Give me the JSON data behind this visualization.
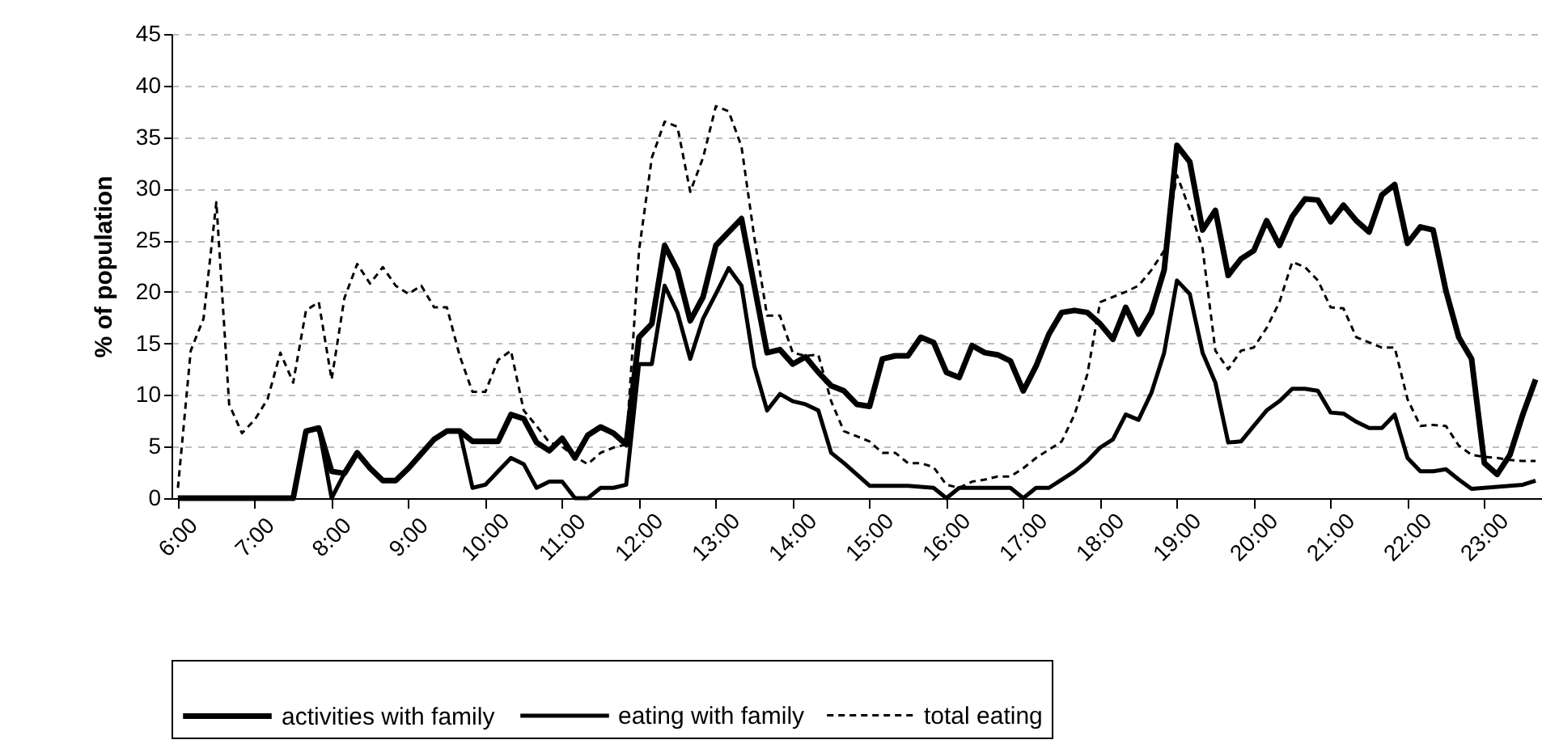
{
  "chart_data": {
    "type": "line",
    "ylabel": "% of population",
    "categories": [
      "6:00",
      null,
      null,
      null,
      null,
      null,
      "7:00",
      null,
      null,
      null,
      null,
      null,
      "8:00",
      null,
      null,
      null,
      null,
      null,
      "9:00",
      null,
      null,
      null,
      null,
      null,
      "10:00",
      null,
      null,
      null,
      null,
      null,
      "11:00",
      null,
      null,
      null,
      null,
      null,
      "12:00",
      null,
      null,
      null,
      null,
      null,
      "13:00",
      null,
      null,
      null,
      null,
      null,
      "14:00",
      null,
      null,
      null,
      null,
      null,
      "15:00",
      null,
      null,
      null,
      null,
      null,
      "16:00",
      null,
      null,
      null,
      null,
      null,
      "17:00",
      null,
      null,
      null,
      null,
      null,
      "18:00",
      null,
      null,
      null,
      null,
      null,
      "19:00",
      null,
      null,
      null,
      null,
      null,
      "20:00",
      null,
      null,
      null,
      null,
      null,
      "21:00",
      null,
      null,
      null,
      null,
      null,
      "22:00",
      null,
      null,
      null,
      null,
      null,
      "23:00",
      null,
      null,
      null,
      null
    ],
    "series": [
      {
        "name": "activities with family",
        "color": "#000000",
        "line_style": "solid",
        "values": [
          0,
          0,
          0,
          0,
          0,
          0,
          0,
          0,
          0,
          0,
          6.5,
          6.8,
          2.6,
          2.4,
          4.4,
          2.9,
          1.7,
          1.7,
          2.9,
          4.3,
          5.7,
          6.5,
          6.5,
          5.5,
          5.5,
          5.5,
          8.1,
          7.7,
          5.4,
          4.6,
          5.8,
          3.9,
          6.1,
          6.9,
          6.3,
          5.2,
          15.6,
          16.9,
          24.5,
          22.1,
          17.2,
          19.5,
          24.5,
          25.8,
          27.1,
          20.6,
          14.1,
          14.4,
          13.0,
          13.7,
          12.2,
          10.9,
          10.4,
          9.1,
          8.9,
          13.5,
          13.8,
          13.8,
          15.6,
          15.1,
          12.2,
          11.7,
          14.8,
          14.1,
          13.9,
          13.3,
          10.4,
          12.8,
          15.9,
          18.0,
          18.2,
          18.0,
          16.9,
          15.4,
          18.5,
          15.9,
          18.0,
          22.1,
          34.2,
          32.6,
          26.0,
          27.9,
          21.6,
          23.2,
          24.0,
          26.9,
          24.5,
          27.3,
          29.0,
          28.9,
          26.8,
          28.4,
          26.9,
          25.8,
          29.4,
          30.4,
          24.7,
          26.3,
          26.0,
          20.1,
          15.6,
          13.5,
          3.4,
          2.3,
          4.2,
          8.1,
          11.5
        ]
      },
      {
        "name": "eating with family",
        "color": "#000000",
        "line_style": "solid",
        "values": [
          0,
          0,
          0,
          0,
          0,
          0,
          0,
          0,
          0,
          0,
          6.5,
          6.8,
          0,
          2.4,
          4.4,
          2.9,
          1.7,
          1.7,
          2.9,
          4.3,
          5.7,
          6.5,
          6.5,
          1.0,
          1.3,
          2.6,
          3.9,
          3.3,
          1.0,
          1.6,
          1.6,
          0,
          0,
          1.0,
          1.0,
          1.3,
          13.0,
          13.0,
          20.6,
          18.0,
          13.5,
          17.4,
          19.8,
          22.3,
          20.6,
          12.8,
          8.5,
          10.1,
          9.4,
          9.1,
          8.5,
          4.4,
          3.4,
          2.3,
          1.2,
          1.2,
          1.2,
          1.2,
          1.1,
          1.0,
          0,
          1.0,
          1.0,
          1.0,
          1.0,
          1.0,
          0,
          1.0,
          1.0,
          1.8,
          2.6,
          3.6,
          4.9,
          5.7,
          8.1,
          7.6,
          10.2,
          14.1,
          21.1,
          19.8,
          14.1,
          11.2,
          5.4,
          5.5,
          7.0,
          8.5,
          9.4,
          10.6,
          10.6,
          10.4,
          8.3,
          8.2,
          7.4,
          6.8,
          6.8,
          8.1,
          3.9,
          2.6,
          2.6,
          2.8,
          1.8,
          0.9,
          1.0,
          1.1,
          1.2,
          1.3,
          1.7
        ]
      },
      {
        "name": "total eating",
        "color": "#000000",
        "line_style": "dashed",
        "values": [
          1.0,
          14.3,
          17.4,
          28.7,
          9.1,
          6.3,
          7.6,
          9.6,
          14.1,
          11.2,
          18.2,
          19.0,
          11.5,
          19.4,
          22.7,
          20.8,
          22.4,
          20.6,
          19.8,
          20.6,
          18.5,
          18.5,
          13.8,
          10.3,
          10.3,
          13.4,
          14.3,
          8.5,
          7.0,
          5.4,
          5.0,
          4.0,
          3.3,
          4.4,
          4.9,
          5.2,
          24.0,
          33.0,
          36.5,
          36.0,
          29.7,
          33.0,
          38.0,
          37.5,
          34.1,
          25.3,
          17.7,
          17.7,
          14.1,
          13.8,
          13.9,
          9.4,
          6.5,
          6.0,
          5.5,
          4.4,
          4.4,
          3.4,
          3.4,
          3.0,
          1.3,
          1.0,
          1.6,
          1.8,
          2.1,
          2.1,
          2.9,
          3.9,
          4.7,
          5.5,
          8.1,
          12.0,
          19.0,
          19.5,
          20.0,
          20.6,
          22.1,
          24.0,
          31.3,
          28.0,
          24.2,
          14.3,
          12.5,
          14.3,
          14.6,
          16.5,
          19.0,
          22.9,
          22.4,
          21.1,
          18.5,
          18.4,
          15.6,
          15.1,
          14.6,
          14.6,
          9.6,
          7.0,
          7.1,
          7.0,
          5.1,
          4.2,
          4.0,
          3.9,
          3.7,
          3.6,
          3.6
        ]
      }
    ],
    "ylim": [
      0,
      45
    ],
    "yticks": [
      0,
      5,
      10,
      15,
      20,
      25,
      30,
      35,
      40,
      45
    ],
    "grid": "y",
    "legend": "bottom",
    "marker": "none"
  }
}
